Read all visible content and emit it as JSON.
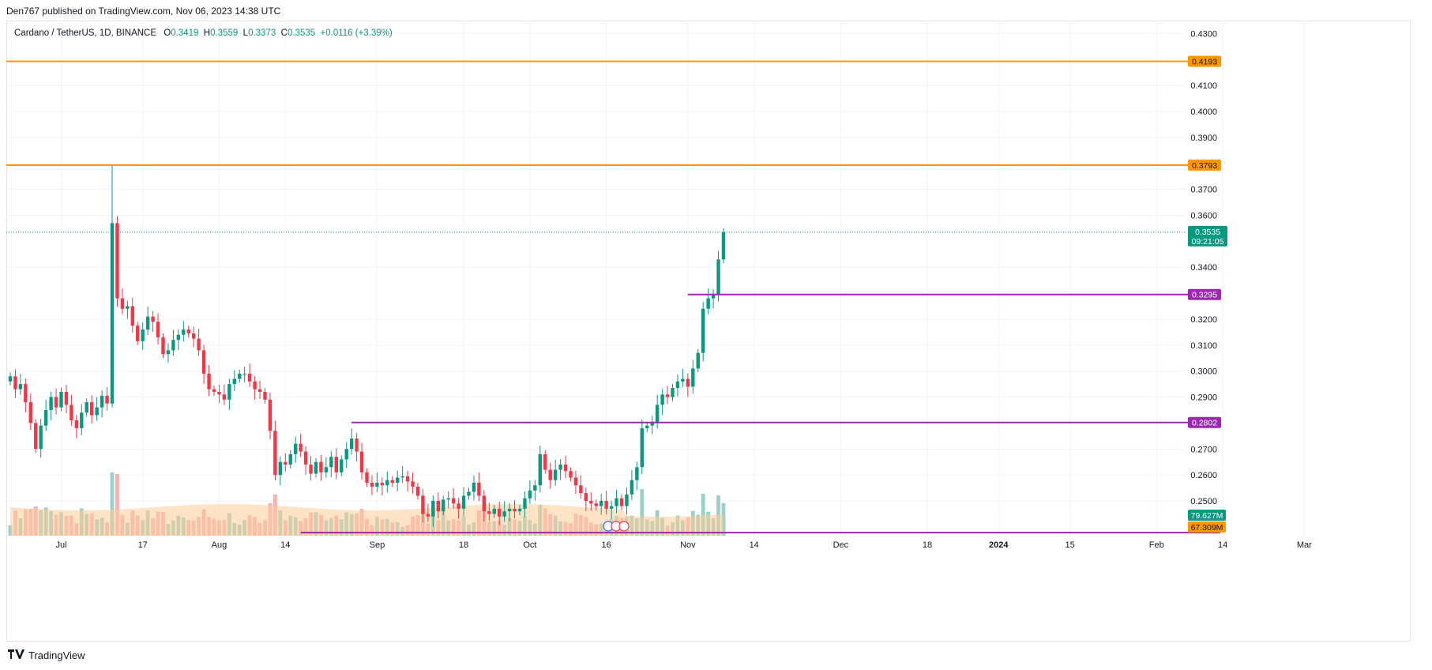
{
  "header": {
    "published_text": "Den767 published on TradingView.com, Nov 06, 2023 14:38 UTC"
  },
  "legend": {
    "symbol": "Cardano / TetherUS, 1D, BINANCE",
    "o_label": "O",
    "o": "0.3419",
    "h_label": "H",
    "h": "0.3559",
    "l_label": "L",
    "l": "0.3373",
    "c_label": "C",
    "c": "0.3535",
    "change": "+0.0116 (+3.39%)"
  },
  "footer": {
    "brand": "TradingView",
    "logo_icon": "tradingview-logo-icon"
  },
  "colors": {
    "up": "#089981",
    "down": "#f23645",
    "vol_up": "#8fccc0",
    "vol_down": "#f7a7ab",
    "orange_line": "#ff9800",
    "purple_line": "#9c27b0",
    "volume_ma": "#ffcc99",
    "grid": "#f0f3fa"
  },
  "chart_data": {
    "type": "candlestick",
    "symbol": "Cardano / TetherUS",
    "interval": "1D",
    "exchange": "BINANCE",
    "ylim": [
      0.236,
      0.435
    ],
    "y_ticks": [
      "0.4300",
      "0.4100",
      "0.4000",
      "0.3900",
      "0.3700",
      "0.3600",
      "0.3400",
      "0.3200",
      "0.3100",
      "0.3000",
      "0.2900",
      "0.2700",
      "0.2600",
      "0.2500"
    ],
    "x_ticks": [
      {
        "label": "Jul",
        "date": "2023-07-01"
      },
      {
        "label": "17",
        "date": "2023-07-17"
      },
      {
        "label": "Aug",
        "date": "2023-08-01"
      },
      {
        "label": "14",
        "date": "2023-08-14"
      },
      {
        "label": "Sep",
        "date": "2023-09-01"
      },
      {
        "label": "18",
        "date": "2023-09-18"
      },
      {
        "label": "Oct",
        "date": "2023-10-01"
      },
      {
        "label": "16",
        "date": "2023-10-16"
      },
      {
        "label": "Nov",
        "date": "2023-11-01"
      },
      {
        "label": "14",
        "date": "2023-11-14"
      },
      {
        "label": "Dec",
        "date": "2023-12-01"
      },
      {
        "label": "18",
        "date": "2023-12-18"
      },
      {
        "label": "2024",
        "date": "2024-01-01"
      },
      {
        "label": "15",
        "date": "2024-01-15"
      },
      {
        "label": "Feb",
        "date": "2024-02-01"
      },
      {
        "label": "14",
        "date": "2024-02-14"
      },
      {
        "label": "Mar",
        "date": "2024-03-01"
      }
    ],
    "first_date": "2023-06-21",
    "last_date": "2023-11-06",
    "closes": [
      0.298,
      0.293,
      0.295,
      0.288,
      0.28,
      0.27,
      0.279,
      0.285,
      0.29,
      0.286,
      0.292,
      0.287,
      0.281,
      0.278,
      0.284,
      0.288,
      0.283,
      0.286,
      0.2905,
      0.2875,
      0.357,
      0.328,
      0.324,
      0.325,
      0.3175,
      0.3115,
      0.316,
      0.321,
      0.319,
      0.313,
      0.3065,
      0.308,
      0.312,
      0.314,
      0.316,
      0.3145,
      0.3125,
      0.308,
      0.299,
      0.293,
      0.292,
      0.291,
      0.289,
      0.295,
      0.297,
      0.299,
      0.299,
      0.296,
      0.293,
      0.292,
      0.289,
      0.277,
      0.26,
      0.265,
      0.264,
      0.268,
      0.272,
      0.269,
      0.264,
      0.2605,
      0.265,
      0.261,
      0.263,
      0.267,
      0.261,
      0.266,
      0.27,
      0.274,
      0.269,
      0.261,
      0.257,
      0.2555,
      0.257,
      0.256,
      0.258,
      0.257,
      0.259,
      0.2595,
      0.2575,
      0.2555,
      0.252,
      0.245,
      0.244,
      0.25,
      0.246,
      0.2505,
      0.251,
      0.249,
      0.247,
      0.252,
      0.2535,
      0.257,
      0.252,
      0.246,
      0.245,
      0.247,
      0.244,
      0.246,
      0.247,
      0.246,
      0.247,
      0.251,
      0.254,
      0.256,
      0.268,
      0.262,
      0.258,
      0.262,
      0.264,
      0.2615,
      0.259,
      0.256,
      0.253,
      0.25,
      0.249,
      0.248,
      0.25,
      0.247,
      0.248,
      0.251,
      0.248,
      0.2525,
      0.258,
      0.263,
      0.278,
      0.279,
      0.28,
      0.287,
      0.291,
      0.29,
      0.2935,
      0.296,
      0.297,
      0.294,
      0.301,
      0.307,
      0.324,
      0.328,
      0.3295,
      0.343,
      0.3535
    ],
    "series": [
      {
        "name": "Volume",
        "last_value": "79.627M"
      },
      {
        "name": "Volume MA",
        "last_value": "67.309M"
      }
    ],
    "horizontal_levels": [
      {
        "value": 0.4193,
        "label": "0.4193",
        "color": "#ff9800",
        "start": "full"
      },
      {
        "value": 0.3793,
        "label": "0.3793",
        "color": "#ff9800",
        "start": "full"
      },
      {
        "value": 0.3295,
        "label": "0.3295",
        "color": "#9c27b0",
        "start_date": "2023-11-01"
      },
      {
        "value": 0.2802,
        "label": "0.2802",
        "color": "#9c27b0",
        "start_date": "2023-08-27"
      },
      {
        "value": 0.2378,
        "label": "",
        "color": "#9c27b0",
        "start_date": "2023-08-17"
      }
    ],
    "last_price": {
      "value": 0.3535,
      "label": "0.3535",
      "countdown": "09:21:05"
    },
    "grid": true
  }
}
